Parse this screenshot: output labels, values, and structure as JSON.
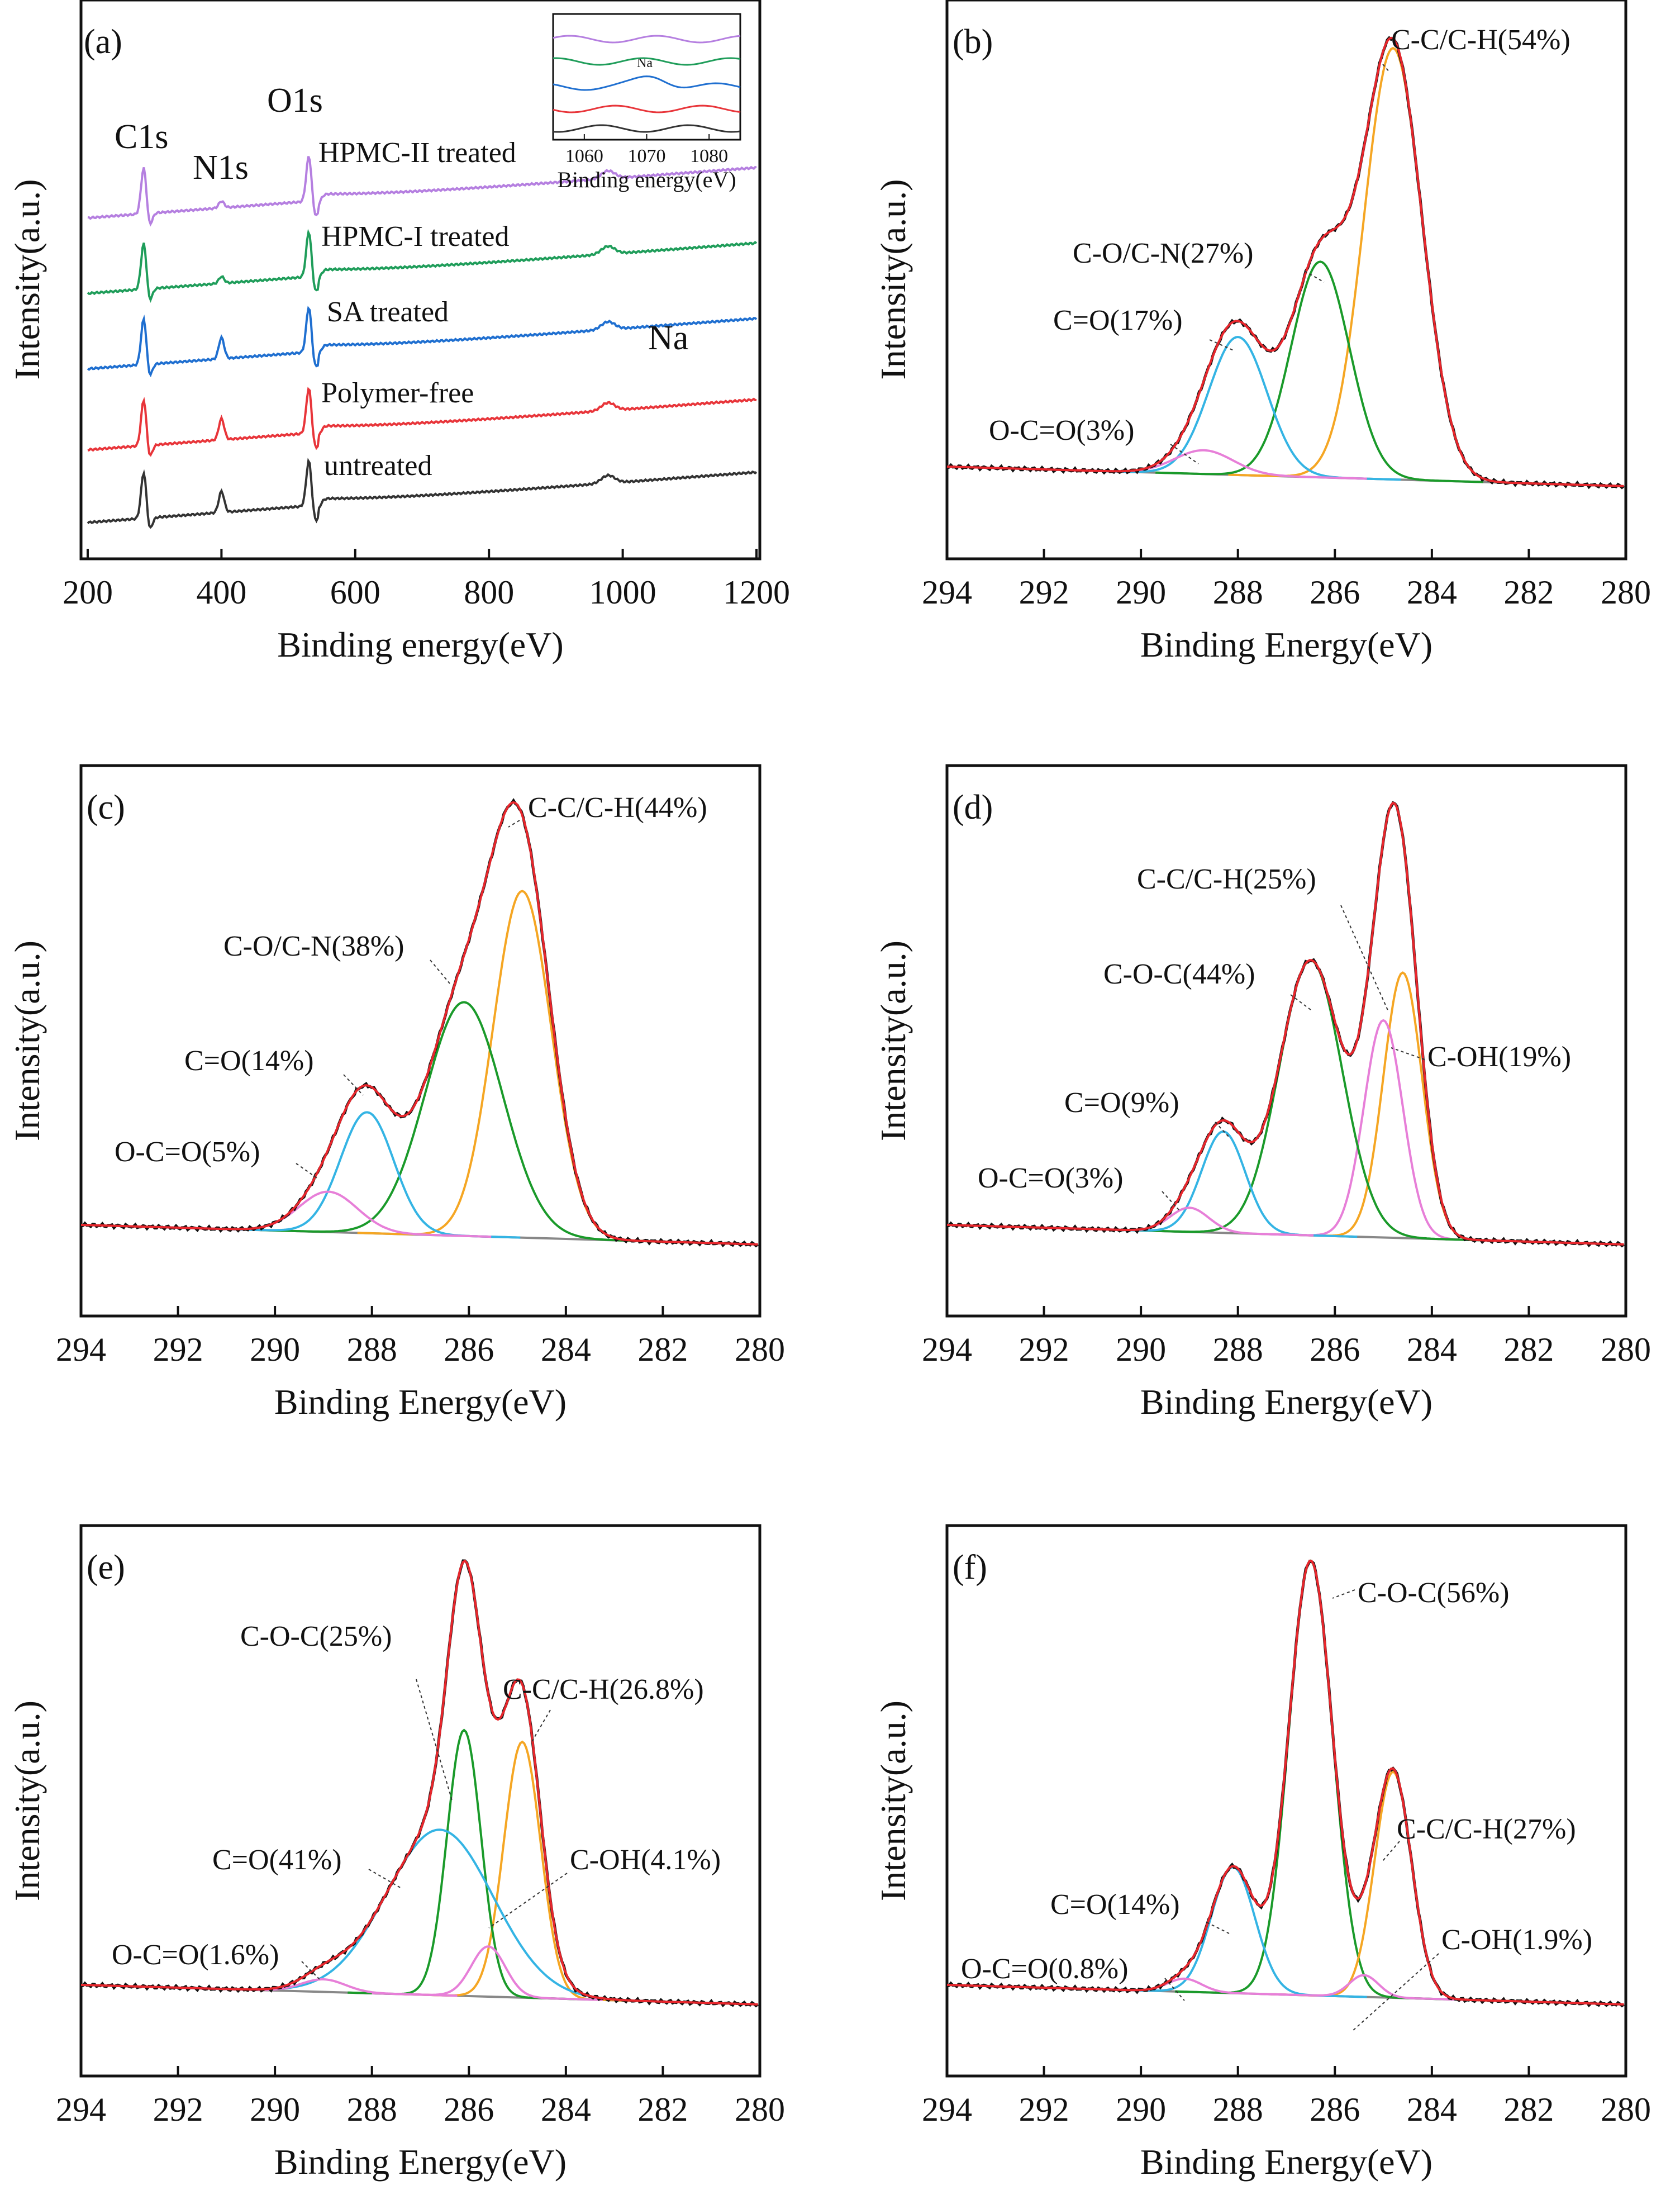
{
  "figure": {
    "description_panels": [
      "a",
      "b",
      "c",
      "d",
      "e",
      "f"
    ]
  },
  "colors": {
    "sum": "#e8262c",
    "raw": "#111111",
    "cc": "#f5a623",
    "co": "#1a9a2a",
    "coc": "#1a9a2a",
    "cdo": "#34b4e4",
    "occo": "#e77fd8",
    "coh": "#e77fd8",
    "bg": "#888888"
  },
  "chart_data": [
    {
      "panel": "a",
      "label": "(a)",
      "type": "line",
      "xlabel": "Binding energy(eV)",
      "ylabel": "Intensity(a.u.)",
      "xlim": [
        190,
        1205
      ],
      "xticks": [
        200,
        400,
        600,
        800,
        1000,
        1200
      ],
      "peak_labels": {
        "c1s": "C1s",
        "n1s": "N1s",
        "o1s": "O1s",
        "na": "Na"
      },
      "series": [
        {
          "name": "HPMC-II treated",
          "color": "#b57fe0"
        },
        {
          "name": "HPMC-I treated",
          "color": "#1f9d5a"
        },
        {
          "name": "SA treated",
          "color": "#1f6fd0"
        },
        {
          "name": "Polymer-free",
          "color": "#e8353a"
        },
        {
          "name": "untreated",
          "color": "#333333"
        }
      ],
      "inset": {
        "xlabel": "Binding energy(eV)",
        "xticks": [
          1060,
          1070,
          1080
        ],
        "annotation": "Na"
      }
    },
    {
      "panel": "b",
      "label": "(b)",
      "type": "line",
      "xlabel": "Binding Energy(eV)",
      "ylabel": "Intensity(a.u.)",
      "xlim": [
        294,
        280
      ],
      "xticks": [
        294,
        292,
        290,
        288,
        286,
        284,
        282,
        280
      ],
      "components": [
        {
          "name": "C-C/C-H",
          "center": 284.8,
          "height": 1.0,
          "width": 0.6,
          "percent": "54%",
          "text": "C-C/C-H(54%)"
        },
        {
          "name": "C-O/C-N",
          "center": 286.3,
          "height": 0.5,
          "width": 0.6,
          "percent": "27%",
          "text": "C-O/C-N(27%)"
        },
        {
          "name": "C=O",
          "center": 288.0,
          "height": 0.32,
          "width": 0.6,
          "percent": "17%",
          "text": "C=O(17%)"
        },
        {
          "name": "O-C=O",
          "center": 288.7,
          "height": 0.055,
          "width": 0.6,
          "percent": "3%",
          "text": "O-C=O(3%)"
        }
      ]
    },
    {
      "panel": "c",
      "label": "(c)",
      "type": "line",
      "xlabel": "Binding Energy(eV)",
      "ylabel": "Intensity(a.u.)",
      "xlim": [
        294,
        280
      ],
      "xticks": [
        294,
        292,
        290,
        288,
        286,
        284,
        282,
        280
      ],
      "components": [
        {
          "name": "C-C/C-H",
          "center": 284.9,
          "height": 0.86,
          "width": 0.6,
          "percent": "44%",
          "text": "C-C/C-H(44%)"
        },
        {
          "name": "C-O/C-N",
          "center": 286.1,
          "height": 0.58,
          "width": 0.8,
          "percent": "38%",
          "text": "C-O/C-N(38%)"
        },
        {
          "name": "C=O",
          "center": 288.1,
          "height": 0.3,
          "width": 0.55,
          "percent": "14%",
          "text": "C=O(14%)"
        },
        {
          "name": "O-C=O",
          "center": 288.9,
          "height": 0.1,
          "width": 0.6,
          "percent": "5%",
          "text": "O-C=O(5%)"
        }
      ]
    },
    {
      "panel": "d",
      "label": "(d)",
      "type": "line",
      "xlabel": "Binding Energy(eV)",
      "ylabel": "Intensity(a.u.)",
      "xlim": [
        294,
        280
      ],
      "xticks": [
        294,
        292,
        290,
        288,
        286,
        284,
        282,
        280
      ],
      "components": [
        {
          "name": "C-C/C-H",
          "center": 284.6,
          "height": 0.55,
          "width": 0.4,
          "percent": "25%",
          "text": "C-C/C-H(25%)"
        },
        {
          "name": "C-OH",
          "center": 285.0,
          "height": 0.45,
          "width": 0.4,
          "percent": "19%",
          "text": "C-OH(19%)"
        },
        {
          "name": "C-O-C",
          "center": 286.5,
          "height": 0.57,
          "width": 0.65,
          "percent": "44%",
          "text": "C-O-C(44%)"
        },
        {
          "name": "C=O",
          "center": 288.3,
          "height": 0.21,
          "width": 0.45,
          "percent": "9%",
          "text": "C=O(9%)"
        },
        {
          "name": "O-C=O",
          "center": 289.0,
          "height": 0.05,
          "width": 0.4,
          "percent": "3%",
          "text": "O-C=O(3%)"
        }
      ]
    },
    {
      "panel": "e",
      "label": "(e)",
      "type": "line",
      "xlabel": "Binding Energy(eV)",
      "ylabel": "Intensity(a.u.)",
      "xlim": [
        294,
        280
      ],
      "xticks": [
        294,
        292,
        290,
        288,
        286,
        284,
        282,
        280
      ],
      "components": [
        {
          "name": "C-C/C-H",
          "center": 284.9,
          "height": 0.51,
          "width": 0.38,
          "percent": "26.8%",
          "text": "C-C/C-H(26.8%)"
        },
        {
          "name": "C-O-C",
          "center": 286.1,
          "height": 0.53,
          "width": 0.35,
          "percent": "25%",
          "text": "C-O-C(25%)"
        },
        {
          "name": "C=O",
          "center": 286.6,
          "height": 0.33,
          "width": 1.1,
          "percent": "41%",
          "text": "C=O(41%)"
        },
        {
          "name": "C-OH",
          "center": 285.6,
          "height": 0.1,
          "width": 0.35,
          "percent": "4.1%",
          "text": "C-OH(4.1%)"
        },
        {
          "name": "O-C=O",
          "center": 289.0,
          "height": 0.025,
          "width": 0.45,
          "percent": "1.6%",
          "text": "O-C=O(1.6%)"
        }
      ]
    },
    {
      "panel": "f",
      "label": "(f)",
      "type": "line",
      "xlabel": "Binding Energy(eV)",
      "ylabel": "Intensity(a.u.)",
      "xlim": [
        294,
        280
      ],
      "xticks": [
        294,
        292,
        290,
        288,
        286,
        284,
        282,
        280
      ],
      "components": [
        {
          "name": "C-O-C",
          "center": 286.5,
          "height": 1.0,
          "width": 0.45,
          "percent": "56%",
          "text": "C-O-C(56%)"
        },
        {
          "name": "C-C/C-H",
          "center": 284.8,
          "height": 0.52,
          "width": 0.38,
          "percent": "27%",
          "text": "C-C/C-H(27%)"
        },
        {
          "name": "C=O",
          "center": 288.1,
          "height": 0.29,
          "width": 0.45,
          "percent": "14%",
          "text": "C=O(14%)"
        },
        {
          "name": "C-OH",
          "center": 285.4,
          "height": 0.05,
          "width": 0.3,
          "percent": "1.9%",
          "text": "C-OH(1.9%)"
        },
        {
          "name": "O-C=O",
          "center": 289.1,
          "height": 0.03,
          "width": 0.35,
          "percent": "0.8%",
          "text": "O-C=O(0.8%)"
        }
      ]
    }
  ]
}
